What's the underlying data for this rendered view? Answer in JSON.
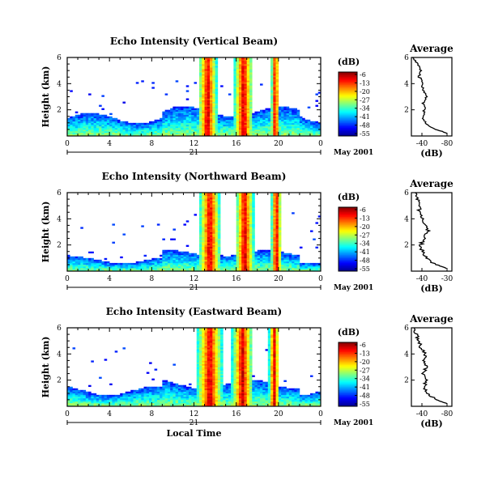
{
  "colors": {
    "jet": [
      "#00008f",
      "#0000ff",
      "#0080ff",
      "#00ffff",
      "#80ff80",
      "#ffff00",
      "#ff8000",
      "#ff0000",
      "#800000"
    ]
  },
  "chart_data": [
    {
      "type": "heatmap",
      "title": "Echo Intensity (Vertical Beam)",
      "ylabel": "Height (km)",
      "xticks": [
        "0",
        "4",
        "8",
        "12",
        "16",
        "20",
        "0"
      ],
      "yticks": [
        "2",
        "4",
        "6"
      ],
      "ylim": [
        0,
        6
      ],
      "xlim": [
        0,
        24
      ],
      "day_label": "21",
      "date_label": "May 2001",
      "colorbar": {
        "unit": "(dB)",
        "ticks": [
          "-6",
          "-13",
          "-20",
          "-27",
          "-34",
          "-41",
          "-48",
          "-55"
        ],
        "range": [
          -55,
          -6
        ]
      },
      "rain_events": [
        {
          "hour": 13.3,
          "width_h": 0.9,
          "top_km": 6.0
        },
        {
          "hour": 16.7,
          "width_h": 0.9,
          "top_km": 6.0
        },
        {
          "hour": 19.7,
          "width_h": 0.4,
          "top_km": 6.0
        }
      ],
      "clutter_top_km": 1.6,
      "profile": {
        "title": "Average",
        "xlabel": "(dB)",
        "xticks": [
          "-40",
          "-80"
        ],
        "xlim": [
          -55,
          -25
        ],
        "yticks": [
          "2",
          "4",
          "6"
        ],
        "height_km": [
          0.2,
          0.5,
          1.0,
          1.5,
          2.0,
          2.5,
          3.0,
          3.5,
          4.0,
          4.5,
          5.0,
          5.5,
          6.0
        ],
        "db": [
          -28,
          -38,
          -44,
          -47,
          -45,
          -46,
          -44,
          -46,
          -47,
          -49,
          -48,
          -51,
          -54
        ]
      }
    },
    {
      "type": "heatmap",
      "title": "Echo Intensity (Northward Beam)",
      "ylabel": "Height (km)",
      "xticks": [
        "0",
        "4",
        "8",
        "12",
        "16",
        "20",
        "0"
      ],
      "yticks": [
        "2",
        "4",
        "6"
      ],
      "ylim": [
        0,
        6
      ],
      "xlim": [
        0,
        24
      ],
      "day_label": "21",
      "date_label": "May 2001",
      "colorbar": {
        "unit": "(dB)",
        "ticks": [
          "-6",
          "-13",
          "-20",
          "-27",
          "-34",
          "-41",
          "-48",
          "-55"
        ],
        "range": [
          -55,
          -6
        ]
      },
      "rain_events": [
        {
          "hour": 13.5,
          "width_h": 1.0,
          "top_km": 6.0
        },
        {
          "hour": 16.8,
          "width_h": 0.9,
          "top_km": 6.0
        },
        {
          "hour": 19.8,
          "width_h": 0.5,
          "top_km": 6.0
        }
      ],
      "clutter_top_km": 1.0,
      "profile": {
        "title": "Average",
        "xlabel": "(dB)",
        "xticks": [
          "-40",
          "-30"
        ],
        "xlim": [
          -46,
          -24
        ],
        "yticks": [
          "2",
          "4",
          "6"
        ],
        "height_km": [
          0.2,
          0.5,
          1.0,
          1.5,
          2.0,
          2.5,
          3.0,
          3.5,
          4.0,
          4.5,
          5.0,
          5.5,
          6.0
        ],
        "db": [
          -27,
          -33,
          -38,
          -40,
          -41,
          -39,
          -37,
          -38,
          -40,
          -42,
          -41,
          -43,
          -44
        ]
      }
    },
    {
      "type": "heatmap",
      "title": "Echo Intensity (Eastward Beam)",
      "ylabel": "Height (km)",
      "xticks": [
        "0",
        "4",
        "8",
        "12",
        "16",
        "20",
        "0"
      ],
      "yticks": [
        "2",
        "4",
        "6"
      ],
      "ylim": [
        0,
        6
      ],
      "xlim": [
        0,
        24
      ],
      "day_label": "21",
      "date_label": "May 2001",
      "xlabel": "Local Time",
      "colorbar": {
        "unit": "(dB)",
        "ticks": [
          "-6",
          "-13",
          "-20",
          "-27",
          "-34",
          "-41",
          "-48",
          "-55"
        ],
        "range": [
          -55,
          -6
        ]
      },
      "rain_events": [
        {
          "hour": 13.5,
          "width_h": 1.2,
          "top_km": 6.0
        },
        {
          "hour": 16.6,
          "width_h": 1.0,
          "top_km": 6.0
        },
        {
          "hour": 19.6,
          "width_h": 0.5,
          "top_km": 6.0
        }
      ],
      "clutter_top_km": 1.4,
      "profile": {
        "title": "Average",
        "xlabel": "(dB)",
        "xticks": [
          "-40",
          "-80"
        ],
        "xlim": [
          -48,
          -22
        ],
        "yticks": [
          "2",
          "4",
          "6"
        ],
        "height_km": [
          0.2,
          0.5,
          1.0,
          1.5,
          2.0,
          2.5,
          3.0,
          3.5,
          4.0,
          4.5,
          5.0,
          5.5,
          6.0
        ],
        "db": [
          -25,
          -32,
          -38,
          -40,
          -38,
          -41,
          -38,
          -40,
          -39,
          -42,
          -43,
          -45,
          -46
        ]
      }
    }
  ]
}
